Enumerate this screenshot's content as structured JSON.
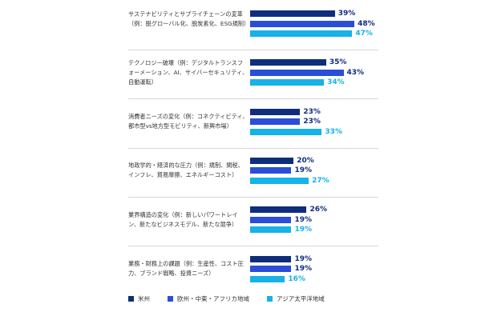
{
  "chart_data": {
    "type": "bar",
    "orientation": "horizontal",
    "categories": [
      "サステナビリティとサプライチェーンの変革（例：脱グローバル化、脱炭素化、ESG規制）",
      "テクノロジー破壊（例：デジタルトランスフォーメーション、AI、サイバーセキュリティ、自動運転）",
      "消費者ニーズの変化（例：コネクティビティ、都市型vs地方型モビリティ、新興市場）",
      "地政学的・経済的な圧力（例：規制、関税、インフレ、貿易摩擦、エネルギーコスト）",
      "業界構造の変化（例：新しいパワートレイン、新たなビジネスモデル、新たな競争）",
      "業務・財務上の課題（例：生産性、コスト圧力、ブランド戦略、投資ニーズ）"
    ],
    "series": [
      {
        "name": "米州",
        "color": "#0f2d7d",
        "label_color": "#0f2d7d",
        "values": [
          39,
          35,
          23,
          20,
          26,
          19
        ]
      },
      {
        "name": "欧州・中東・アフリカ地域",
        "color": "#2a4ed8",
        "label_color": "#0f2d7d",
        "values": [
          48,
          43,
          23,
          19,
          19,
          19
        ]
      },
      {
        "name": "アジア太平洋地域",
        "color": "#16b2e8",
        "label_color": "#16b2e8",
        "values": [
          47,
          34,
          33,
          27,
          19,
          16
        ]
      }
    ],
    "value_suffix": "%",
    "legend": "bottom-left",
    "grid": false
  }
}
